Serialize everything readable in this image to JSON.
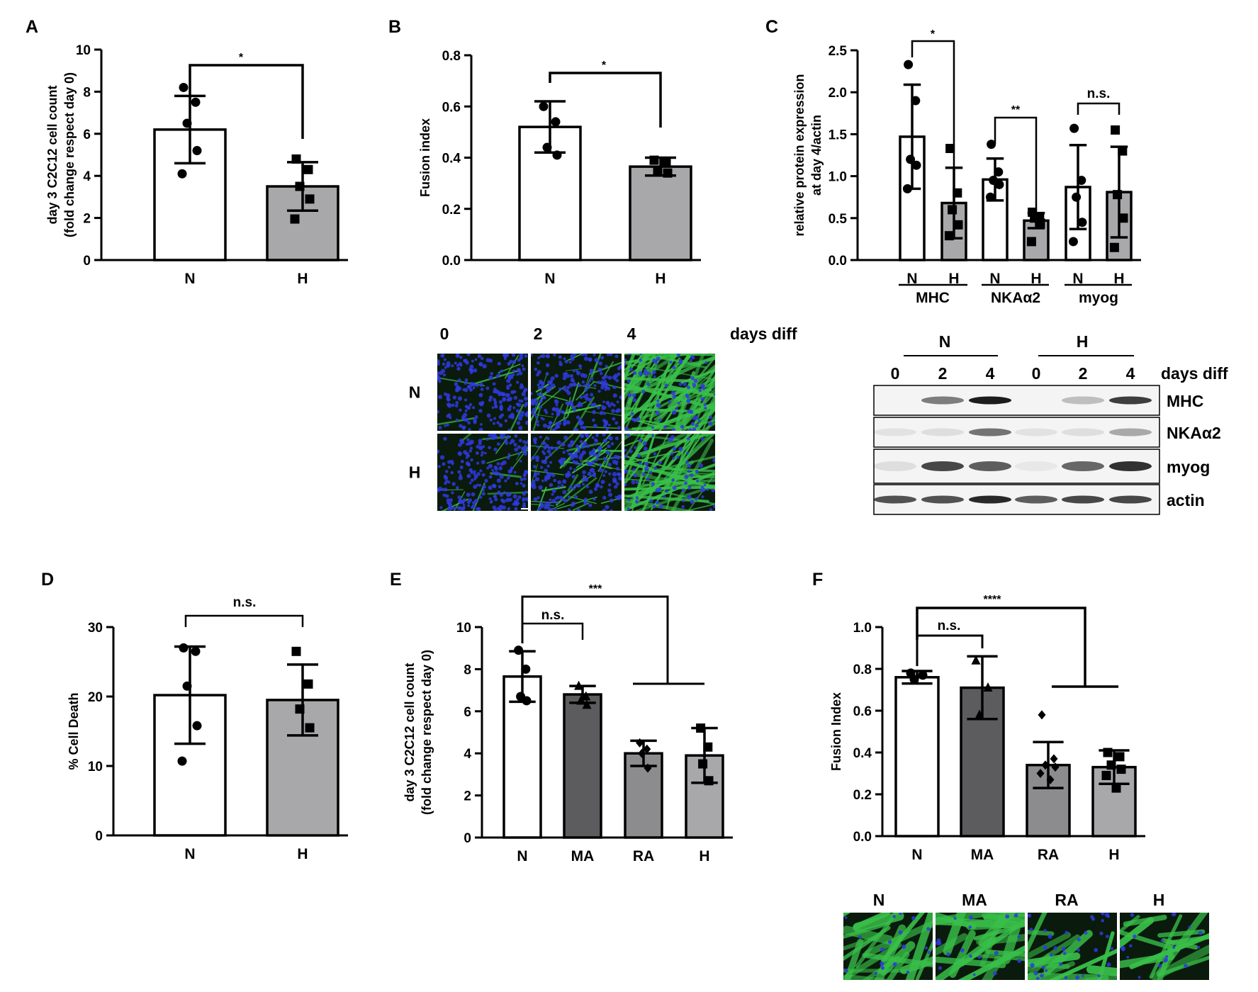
{
  "colors": {
    "white_bar": "#ffffff",
    "light_gray": "#a8a8ab",
    "mid_gray": "#8c8c8e",
    "dark_gray": "#5c5c5e",
    "ink": "#000000",
    "nuclei": "#2f3ae0",
    "myotube": "#39c04a"
  },
  "chart_data": [
    {
      "id": "A",
      "type": "bar",
      "panel_label": "A",
      "categories": [
        "N",
        "H"
      ],
      "values": [
        6.2,
        3.5
      ],
      "errors": [
        1.6,
        1.15
      ],
      "points": [
        [
          8.2,
          7.5,
          6.5,
          5.2,
          4.1
        ],
        [
          4.8,
          4.3,
          3.5,
          2.9,
          1.95
        ]
      ],
      "markers": [
        "circle",
        "square"
      ],
      "ylabel": [
        "day 3 C2C12  cell count",
        "(fold change respect day 0)"
      ],
      "ylim": [
        0,
        10
      ],
      "yticks": [
        "0",
        "2",
        "4",
        "6",
        "8",
        "10"
      ],
      "significance": [
        {
          "label": "*"
        }
      ]
    },
    {
      "id": "B",
      "type": "bar",
      "panel_label": "B",
      "categories": [
        "N",
        "H"
      ],
      "values": [
        0.52,
        0.365
      ],
      "errors": [
        0.1,
        0.035
      ],
      "points": [
        [
          0.6,
          0.54,
          0.44,
          0.41
        ],
        [
          0.39,
          0.38,
          0.35,
          0.34
        ]
      ],
      "markers": [
        "circle",
        "square"
      ],
      "ylabel": [
        "Fusion index"
      ],
      "ylim": [
        0,
        0.8
      ],
      "yticks": [
        "0.0",
        "0.2",
        "0.4",
        "0.6",
        "0.8"
      ],
      "significance": [
        {
          "label": "*"
        }
      ]
    },
    {
      "id": "C",
      "type": "bar",
      "panel_label": "C",
      "categories": [
        "N",
        "H",
        "N",
        "H",
        "N",
        "H"
      ],
      "groups": [
        "MHC",
        "NKAα2",
        "myog"
      ],
      "values": [
        1.47,
        0.68,
        0.96,
        0.47,
        0.87,
        0.81
      ],
      "errors": [
        0.62,
        0.42,
        0.25,
        0.09,
        0.5,
        0.54
      ],
      "points": [
        [
          2.33,
          1.9,
          1.2,
          1.13,
          0.85
        ],
        [
          1.33,
          0.8,
          0.6,
          0.42,
          0.29
        ],
        [
          1.38,
          1.05,
          0.95,
          0.9,
          0.75
        ],
        [
          0.57,
          0.52,
          0.5,
          0.44,
          0.22
        ],
        [
          1.57,
          0.95,
          0.75,
          0.45,
          0.22
        ],
        [
          1.55,
          1.3,
          0.78,
          0.5,
          0.15
        ]
      ],
      "markers": [
        "circle",
        "square",
        "circle",
        "square",
        "circle",
        "square"
      ],
      "ylabel": [
        "relative protein expression",
        "at day 4/actin"
      ],
      "ylim": [
        0,
        2.5
      ],
      "yticks": [
        "0.0",
        "0.5",
        "1.0",
        "1.5",
        "2.0",
        "2.5"
      ],
      "significance": [
        {
          "label": "*"
        },
        {
          "label": "**"
        },
        {
          "label": "n.s."
        }
      ]
    },
    {
      "id": "D",
      "type": "bar",
      "panel_label": "D",
      "categories": [
        "N",
        "H"
      ],
      "values": [
        20.2,
        19.5
      ],
      "errors": [
        7.0,
        5.1
      ],
      "points": [
        [
          27.0,
          26.5,
          21.5,
          15.8,
          10.7
        ],
        [
          26.5,
          21.8,
          18.2,
          15.5
        ]
      ],
      "markers": [
        "circle",
        "square"
      ],
      "ylabel": [
        "% Cell Death"
      ],
      "ylim": [
        0,
        30
      ],
      "yticks": [
        "0",
        "10",
        "20",
        "30"
      ],
      "significance": [
        {
          "label": "n.s."
        }
      ]
    },
    {
      "id": "E",
      "type": "bar",
      "panel_label": "E",
      "categories": [
        "N",
        "MA",
        "RA",
        "H"
      ],
      "values": [
        7.65,
        6.8,
        4.0,
        3.9
      ],
      "errors": [
        1.2,
        0.4,
        0.6,
        1.3
      ],
      "points": [
        [
          8.9,
          8.0,
          6.7,
          6.5
        ],
        [
          7.2,
          6.7,
          6.5,
          6.3
        ],
        [
          4.5,
          4.2,
          4.0,
          3.3
        ],
        [
          5.2,
          4.3,
          3.5,
          2.7
        ]
      ],
      "markers": [
        "circle",
        "triangle",
        "diamond",
        "square"
      ],
      "ylabel": [
        "day 3 C2C12  cell count",
        "(fold change respect day 0)"
      ],
      "ylim": [
        0,
        10
      ],
      "yticks": [
        "0",
        "2",
        "4",
        "6",
        "8",
        "10"
      ],
      "significance": [
        {
          "label": "n.s."
        },
        {
          "label": "***"
        }
      ]
    },
    {
      "id": "F",
      "type": "bar",
      "panel_label": "F",
      "categories": [
        "N",
        "MA",
        "RA",
        "H"
      ],
      "values": [
        0.76,
        0.71,
        0.34,
        0.33
      ],
      "errors": [
        0.03,
        0.15,
        0.11,
        0.08
      ],
      "points": [
        [
          0.78,
          0.77,
          0.75
        ],
        [
          0.84,
          0.71,
          0.58
        ],
        [
          0.58,
          0.37,
          0.34,
          0.33,
          0.3,
          0.27
        ],
        [
          0.4,
          0.38,
          0.34,
          0.32,
          0.29,
          0.23
        ]
      ],
      "markers": [
        "circle",
        "triangle",
        "diamond",
        "square"
      ],
      "ylabel": [
        "Fusion Index"
      ],
      "ylim": [
        0,
        1.0
      ],
      "yticks": [
        "0.0",
        "0.2",
        "0.4",
        "0.6",
        "0.8",
        "1.0"
      ],
      "significance": [
        {
          "label": "n.s."
        },
        {
          "label": "****"
        }
      ]
    }
  ],
  "micrograph_b": {
    "columns": [
      "0",
      "2",
      "4"
    ],
    "suffix": "days diff",
    "rows": [
      "N",
      "H"
    ]
  },
  "western_blot": {
    "groups": [
      "N",
      "H"
    ],
    "days": [
      "0",
      "2",
      "4",
      "0",
      "2",
      "4"
    ],
    "suffix": "days diff",
    "bands": [
      "MHC",
      "NKAα2",
      "myog",
      "actin"
    ]
  },
  "micrograph_f": {
    "columns": [
      "N",
      "MA",
      "RA",
      "H"
    ]
  }
}
